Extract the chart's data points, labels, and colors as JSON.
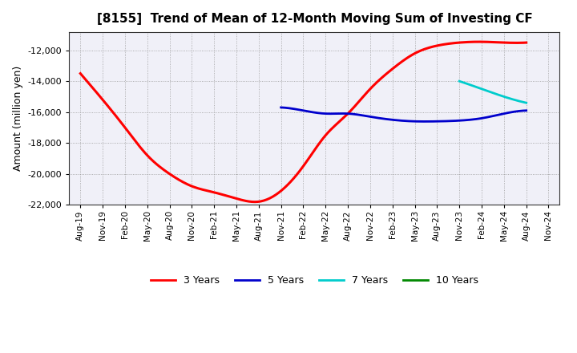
{
  "title": "[8155]  Trend of Mean of 12-Month Moving Sum of Investing CF",
  "ylabel": "Amount (million yen)",
  "ylim": [
    -22000,
    -11000
  ],
  "yticks": [
    -22000,
    -20000,
    -18000,
    -16000,
    -14000,
    -12000
  ],
  "background_color": "#ffffff",
  "plot_bg_color": "#f0f0f8",
  "x_labels": [
    "Aug-19",
    "Nov-19",
    "Feb-20",
    "May-20",
    "Aug-20",
    "Nov-20",
    "Feb-21",
    "May-21",
    "Aug-21",
    "Nov-21",
    "Feb-22",
    "May-22",
    "Aug-22",
    "Nov-22",
    "Feb-23",
    "May-23",
    "Aug-23",
    "Nov-23",
    "Feb-24",
    "May-24",
    "Aug-24",
    "Nov-24"
  ],
  "series": {
    "3 Years": {
      "color": "#ff0000",
      "linewidth": 2.2,
      "data_x": [
        0,
        1,
        2,
        3,
        4,
        5,
        6,
        7,
        8,
        9,
        10,
        11,
        12,
        13,
        14,
        15,
        16,
        17,
        18,
        19,
        20
      ],
      "data_y": [
        -13500,
        -15200,
        -17000,
        -18800,
        -20000,
        -20800,
        -21200,
        -21600,
        -21800,
        -21100,
        -19500,
        -17500,
        -16100,
        -14500,
        -13200,
        -12200,
        -11700,
        -11500,
        -11450,
        -11500,
        -11500
      ]
    },
    "5 Years": {
      "color": "#0000cc",
      "linewidth": 2.0,
      "data_x": [
        9,
        10,
        11,
        12,
        13,
        14,
        15,
        16,
        17,
        18,
        19,
        20
      ],
      "data_y": [
        -15700,
        -15900,
        -16100,
        -16100,
        -16300,
        -16500,
        -16600,
        -16600,
        -16550,
        -16400,
        -16100,
        -15900
      ]
    },
    "7 Years": {
      "color": "#00cccc",
      "linewidth": 2.0,
      "data_x": [
        17,
        18,
        19,
        20
      ],
      "data_y": [
        -14000,
        -14500,
        -15000,
        -15400
      ]
    },
    "10 Years": {
      "color": "#008800",
      "linewidth": 2.0,
      "data_x": [],
      "data_y": []
    }
  },
  "legend_labels": [
    "3 Years",
    "5 Years",
    "7 Years",
    "10 Years"
  ],
  "legend_colors": [
    "#ff0000",
    "#0000cc",
    "#00cccc",
    "#008800"
  ]
}
